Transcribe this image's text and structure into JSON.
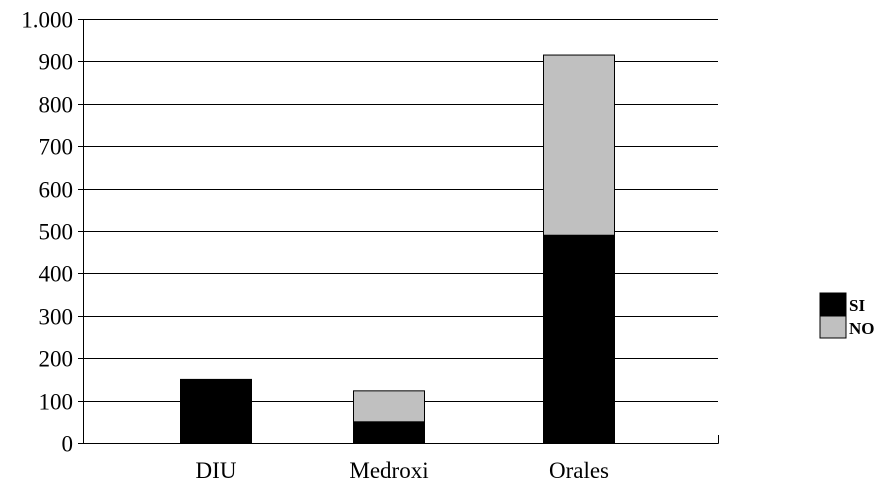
{
  "chart_data": {
    "type": "bar",
    "stacked": true,
    "categories": [
      "DIU",
      "Medroxi",
      "Orales"
    ],
    "series": [
      {
        "name": "SI",
        "values": [
          150,
          50,
          490
        ],
        "color": "#000000"
      },
      {
        "name": "NO",
        "values": [
          0,
          73,
          425
        ],
        "color": "#c0c0c0"
      }
    ],
    "ylim": [
      0,
      1000
    ],
    "yticks": [
      0,
      100,
      200,
      300,
      400,
      500,
      600,
      700,
      800,
      900,
      1000
    ],
    "ytick_labels": [
      "0",
      "100",
      "200",
      "300",
      "400",
      "500",
      "600",
      "700",
      "800",
      "900",
      "1.000"
    ],
    "grid": true,
    "legend_position": "right",
    "title": "",
    "xlabel": "",
    "ylabel": ""
  }
}
